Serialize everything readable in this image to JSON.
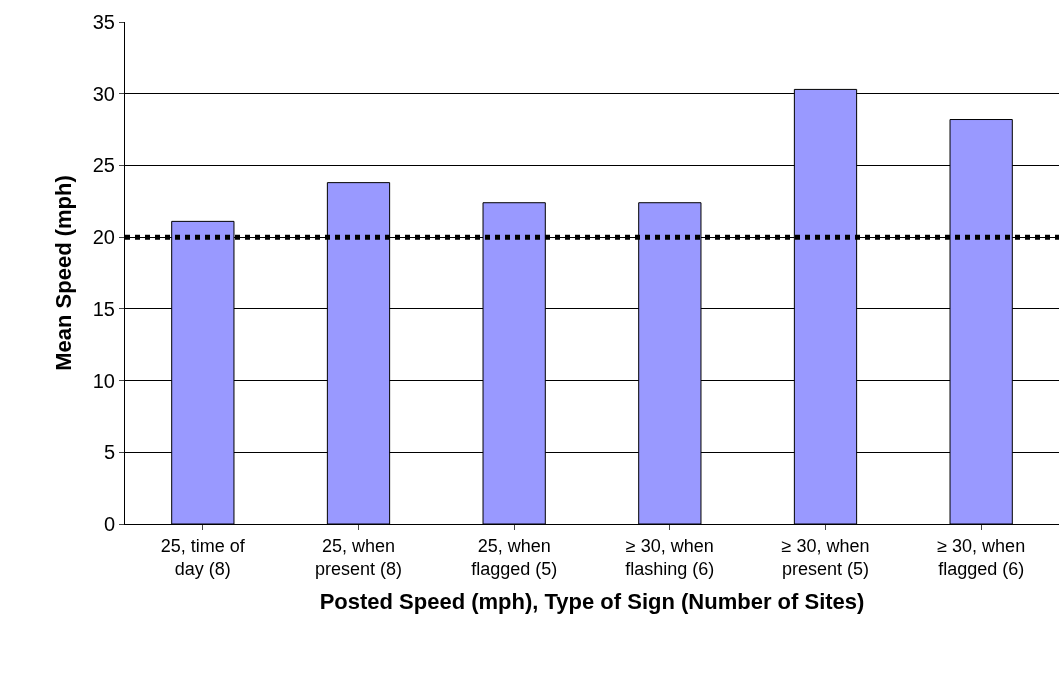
{
  "chart_data": {
    "type": "bar",
    "xlabel": "Posted Speed (mph), Type of Sign (Number of Sites)",
    "ylabel": "Mean Speed (mph)",
    "categories": [
      "25, time of\nday (8)",
      "25, when\npresent (8)",
      "25, when\nflagged (5)",
      "≥ 30, when\nflashing (6)",
      "≥ 30, when\npresent (5)",
      "≥ 30, when\nflagged (6)"
    ],
    "values": [
      21.1,
      23.8,
      22.4,
      22.4,
      30.3,
      28.2
    ],
    "color": "#9999ff",
    "ylim": [
      0,
      35
    ],
    "yticks": [
      0,
      5,
      10,
      15,
      20,
      25,
      30,
      35
    ],
    "grid": "y",
    "ref_lines": [
      {
        "axis": "y",
        "value": 20,
        "color": "#000000",
        "line_style": "dotted"
      }
    ]
  }
}
